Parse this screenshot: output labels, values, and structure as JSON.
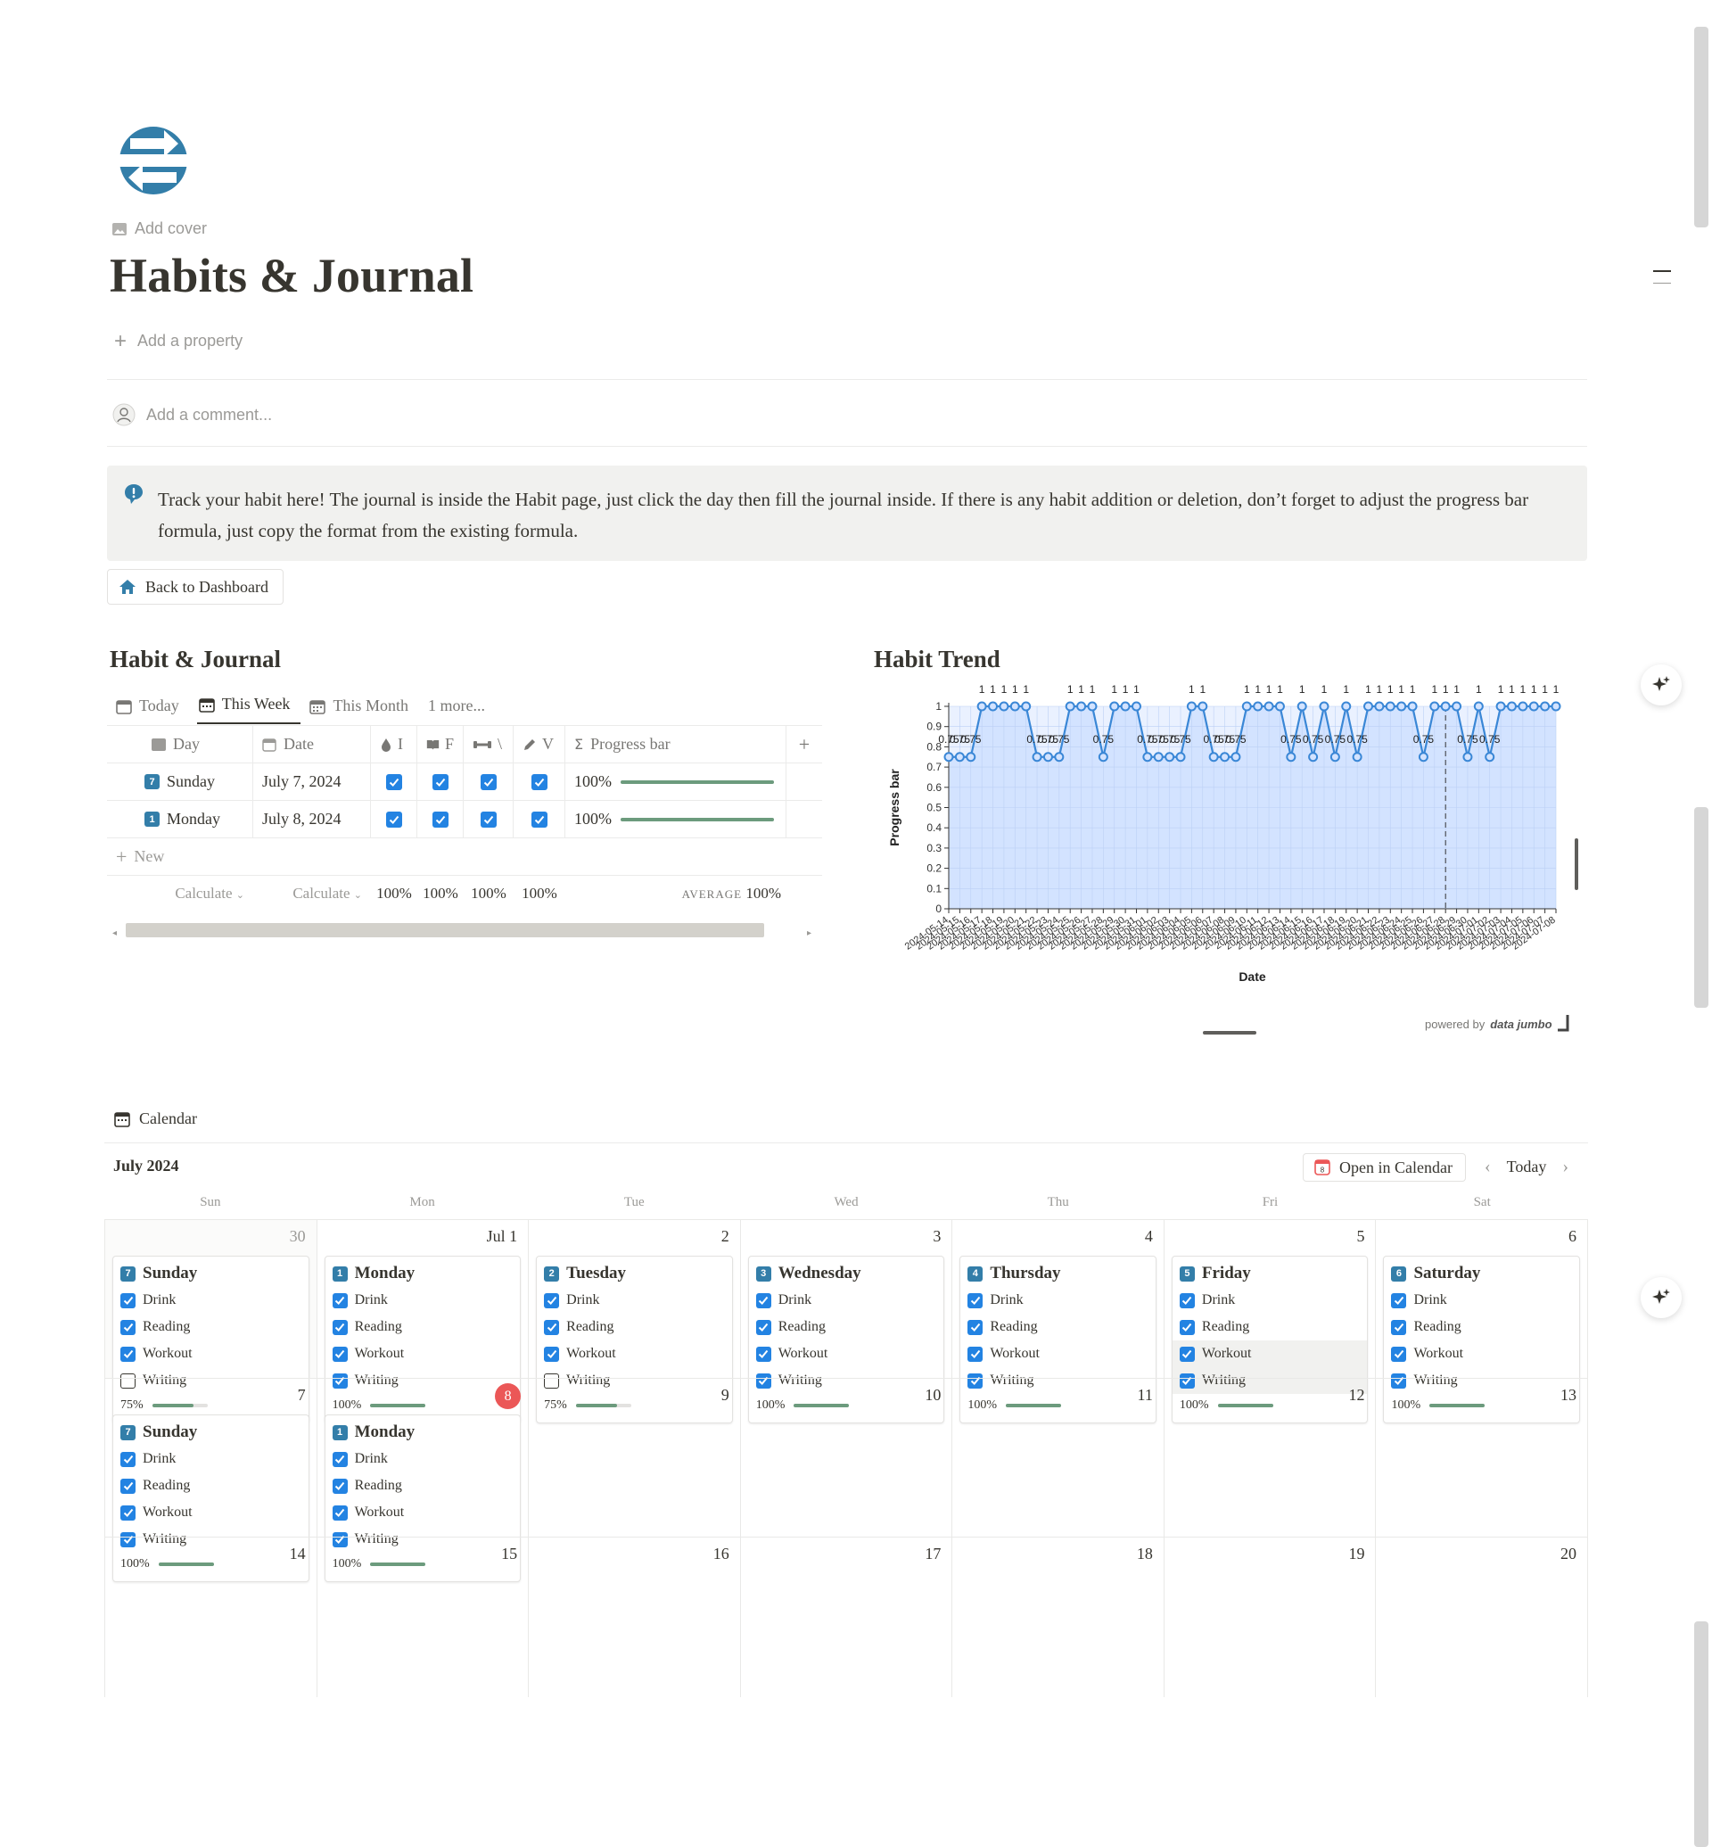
{
  "page": {
    "add_cover": "Add cover",
    "title": "Habits & Journal",
    "add_property": "Add a property",
    "add_comment": "Add a comment...",
    "callout": "Track your habit here! The journal is inside the Habit page, just click the day then fill the journal inside. If there is any habit addition or deletion, don’t  forget to adjust the progress bar formula, just copy the format from the existing formula.",
    "back_button": "Back to Dashboard"
  },
  "habit_table": {
    "heading": "Habit & Journal",
    "tabs": [
      "Today",
      "This Week",
      "This Month",
      "1 more..."
    ],
    "active_tab": "This Week",
    "columns": {
      "day": "Day",
      "date": "Date",
      "c1": "I",
      "c2": "F",
      "c3": "\\",
      "c4": "V",
      "progress": "Progress bar"
    },
    "rows": [
      {
        "num": "7",
        "day": "Sunday",
        "date": "July 7, 2024",
        "progress": "100%",
        "progress_value": 1
      },
      {
        "num": "1",
        "day": "Monday",
        "date": "July 8, 2024",
        "progress": "100%",
        "progress_value": 1
      }
    ],
    "new_label": "New",
    "footer": {
      "calc1": "Calculate",
      "calc2": "Calculate",
      "p1": "100%",
      "p2": "100%",
      "p3": "100%",
      "p4": "100%",
      "avg_label": "AVERAGE",
      "avg": "100%"
    }
  },
  "chart": {
    "heading": "Habit Trend",
    "powered_by": "powered by",
    "brand": "data jumbo"
  },
  "chart_data": {
    "type": "line",
    "title": "Habit Trend",
    "xlabel": "Date",
    "ylabel": "Progress bar",
    "ylim": [
      0,
      1
    ],
    "yticks": [
      "0",
      "0.1",
      "0.2",
      "0.3",
      "0.4",
      "0.5",
      "0.6",
      "0.7",
      "0.8",
      "0.9",
      "1"
    ],
    "grid": true,
    "first_date": "2024-05-14",
    "last_date": "2024-07-08",
    "values": [
      0.75,
      0.75,
      0.75,
      1,
      1,
      1,
      1,
      1,
      0.75,
      0.75,
      0.75,
      1,
      1,
      1,
      0.75,
      1,
      1,
      1,
      0.75,
      0.75,
      0.75,
      0.75,
      1,
      1,
      0.75,
      0.75,
      0.75,
      1,
      1,
      1,
      1,
      0.75,
      1,
      0.75,
      1,
      0.75,
      1,
      0.75,
      1,
      1,
      1,
      1,
      1,
      0.75,
      1,
      1,
      1,
      0.75,
      1,
      0.75,
      1,
      1,
      1,
      1,
      1,
      1
    ]
  },
  "calendar": {
    "title": "Calendar",
    "month": "July 2024",
    "open_in_calendar": "Open in Calendar",
    "today": "Today",
    "weekdays": [
      "Sun",
      "Mon",
      "Tue",
      "Wed",
      "Thu",
      "Fri",
      "Sat"
    ],
    "weeks": [
      [
        {
          "num": "30",
          "muted": true,
          "card": {
            "badge": "7",
            "name": "Sunday",
            "habits": [
              [
                "Drink",
                true
              ],
              [
                "Reading",
                true
              ],
              [
                "Workout",
                true
              ],
              [
                "Writing",
                false
              ]
            ],
            "pct": "75%",
            "value": 0.75
          }
        },
        {
          "num": "Jul 1",
          "card": {
            "badge": "1",
            "name": "Monday",
            "habits": [
              [
                "Drink",
                true
              ],
              [
                "Reading",
                true
              ],
              [
                "Workout",
                true
              ],
              [
                "Writing",
                true
              ]
            ],
            "pct": "100%",
            "value": 1
          }
        },
        {
          "num": "2",
          "card": {
            "badge": "2",
            "name": "Tuesday",
            "habits": [
              [
                "Drink",
                true
              ],
              [
                "Reading",
                true
              ],
              [
                "Workout",
                true
              ],
              [
                "Writing",
                false
              ]
            ],
            "pct": "75%",
            "value": 0.75
          }
        },
        {
          "num": "3",
          "card": {
            "badge": "3",
            "name": "Wednesday",
            "habits": [
              [
                "Drink",
                true
              ],
              [
                "Reading",
                true
              ],
              [
                "Workout",
                true
              ],
              [
                "Writing",
                true
              ]
            ],
            "pct": "100%",
            "value": 1
          }
        },
        {
          "num": "4",
          "card": {
            "badge": "4",
            "name": "Thursday",
            "habits": [
              [
                "Drink",
                true
              ],
              [
                "Reading",
                true
              ],
              [
                "Workout",
                true
              ],
              [
                "Writing",
                true
              ]
            ],
            "pct": "100%",
            "value": 1
          }
        },
        {
          "num": "5",
          "card": {
            "badge": "5",
            "name": "Friday",
            "habits": [
              [
                "Drink",
                true
              ],
              [
                "Reading",
                true
              ],
              [
                "Workout",
                true
              ],
              [
                "Writing",
                true
              ]
            ],
            "pct": "100%",
            "value": 1,
            "hover": true
          }
        },
        {
          "num": "6",
          "card": {
            "badge": "6",
            "name": "Saturday",
            "habits": [
              [
                "Drink",
                true
              ],
              [
                "Reading",
                true
              ],
              [
                "Workout",
                true
              ],
              [
                "Writing",
                true
              ]
            ],
            "pct": "100%",
            "value": 1
          }
        }
      ],
      [
        {
          "num": "7",
          "card": {
            "badge": "7",
            "name": "Sunday",
            "habits": [
              [
                "Drink",
                true
              ],
              [
                "Reading",
                true
              ],
              [
                "Workout",
                true
              ],
              [
                "Writing",
                true
              ]
            ],
            "pct": "100%",
            "value": 1
          }
        },
        {
          "num": "8",
          "today": true,
          "card": {
            "badge": "1",
            "name": "Monday",
            "habits": [
              [
                "Drink",
                true
              ],
              [
                "Reading",
                true
              ],
              [
                "Workout",
                true
              ],
              [
                "Writing",
                true
              ]
            ],
            "pct": "100%",
            "value": 1
          }
        },
        {
          "num": "9"
        },
        {
          "num": "10"
        },
        {
          "num": "11"
        },
        {
          "num": "12"
        },
        {
          "num": "13"
        }
      ],
      [
        {
          "num": "14"
        },
        {
          "num": "15"
        },
        {
          "num": "16"
        },
        {
          "num": "17"
        },
        {
          "num": "18"
        },
        {
          "num": "19"
        },
        {
          "num": "20"
        }
      ]
    ]
  },
  "colors": {
    "accent": "#2383e2",
    "progress": "#6c9b7d",
    "today": "#eb5757",
    "icon_blue": "#337ea9",
    "chart_line": "#3a87d6",
    "chart_fill": "#d3e3ff"
  }
}
